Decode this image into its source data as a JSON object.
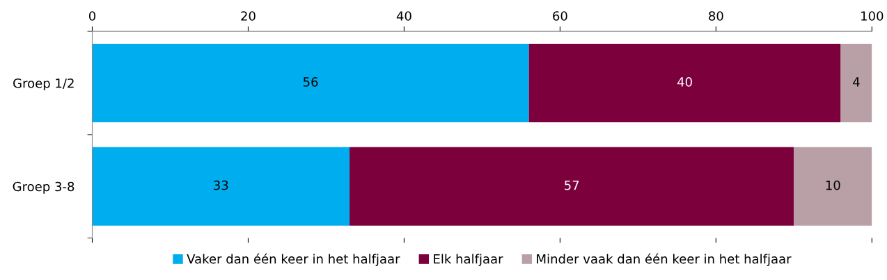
{
  "chart_data": {
    "type": "bar",
    "orientation": "horizontal",
    "stacked": true,
    "categories": [
      "Groep 1/2",
      "Groep 3-8"
    ],
    "series": [
      {
        "name": "Vaker dan één keer in het halfjaar",
        "color": "#00adef",
        "values": [
          56,
          33
        ]
      },
      {
        "name": "Elk halfjaar",
        "color": "#7b003c",
        "values": [
          40,
          57
        ]
      },
      {
        "name": "Minder vaak dan één keer in het halfjaar",
        "color": "#b8a0a6",
        "values": [
          4,
          10
        ]
      }
    ],
    "xlim": [
      0,
      100
    ],
    "xticks": [
      0,
      20,
      40,
      60,
      80,
      100
    ],
    "data_labels": true,
    "legend": "bottom",
    "grid": false
  }
}
